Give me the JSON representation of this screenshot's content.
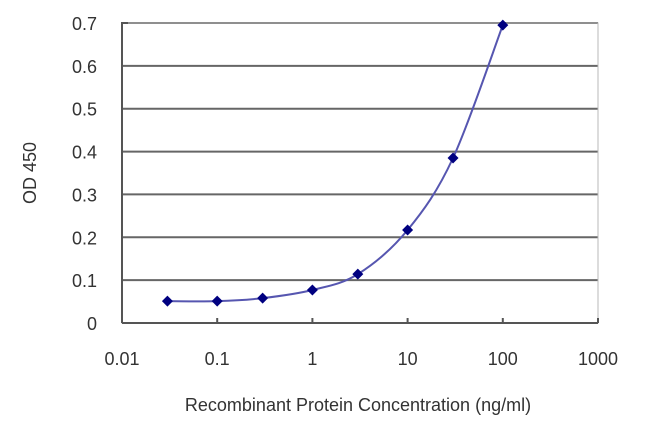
{
  "chart_data": {
    "type": "line",
    "title": "",
    "xlabel": "Recombinant Protein Concentration (ng/ml)",
    "ylabel": "OD 450",
    "xscale": "log",
    "xlim": [
      0.01,
      1000
    ],
    "ylim": [
      0,
      0.7
    ],
    "x_ticks": [
      "0.01",
      "0.1",
      "1",
      "10",
      "100",
      "1000"
    ],
    "y_ticks": [
      "0",
      "0.1",
      "0.2",
      "0.3",
      "0.4",
      "0.5",
      "0.6",
      "0.7"
    ],
    "grid": {
      "horizontal": true,
      "vertical": false
    },
    "legend": null,
    "series": [
      {
        "name": "OD 450",
        "x": [
          0.03,
          0.1,
          0.3,
          1,
          3,
          10,
          30,
          100
        ],
        "values": [
          0.051,
          0.051,
          0.058,
          0.077,
          0.114,
          0.217,
          0.385,
          0.695
        ],
        "marker": "diamond",
        "marker_color": "#000080",
        "line_color": "#5656b0",
        "smooth": true
      }
    ]
  },
  "colors": {
    "axis": "#555555",
    "grid": "#666666",
    "text": "#333333",
    "background": "#ffffff"
  }
}
